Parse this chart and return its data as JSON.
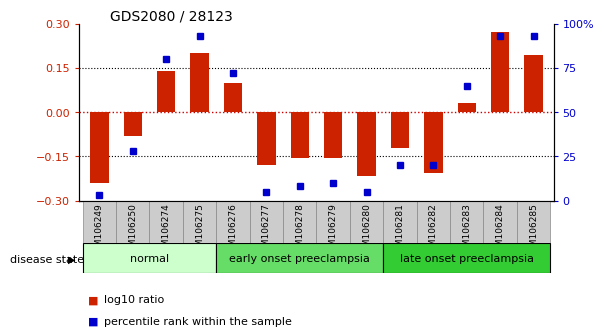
{
  "title": "GDS2080 / 28123",
  "samples": [
    "GSM106249",
    "GSM106250",
    "GSM106274",
    "GSM106275",
    "GSM106276",
    "GSM106277",
    "GSM106278",
    "GSM106279",
    "GSM106280",
    "GSM106281",
    "GSM106282",
    "GSM106283",
    "GSM106284",
    "GSM106285"
  ],
  "log10_ratio": [
    -0.24,
    -0.08,
    0.14,
    0.2,
    0.1,
    -0.18,
    -0.155,
    -0.155,
    -0.215,
    -0.12,
    -0.205,
    0.03,
    0.27,
    0.195
  ],
  "percentile_rank": [
    3,
    28,
    80,
    93,
    72,
    5,
    8,
    10,
    5,
    20,
    20,
    65,
    93,
    93
  ],
  "groups": [
    {
      "label": "normal",
      "start": 0,
      "end": 4,
      "color": "#ccffcc"
    },
    {
      "label": "early onset preeclampsia",
      "start": 4,
      "end": 9,
      "color": "#66dd66"
    },
    {
      "label": "late onset preeclampsia",
      "start": 9,
      "end": 14,
      "color": "#33cc33"
    }
  ],
  "ylim_left": [
    -0.3,
    0.3
  ],
  "ylim_right": [
    0,
    100
  ],
  "bar_color": "#cc2200",
  "dot_color": "#0000cc",
  "zero_line_color": "#cc0000",
  "bg_color": "#ffffff",
  "plot_bg_color": "#ffffff",
  "tick_label_bg": "#cccccc"
}
